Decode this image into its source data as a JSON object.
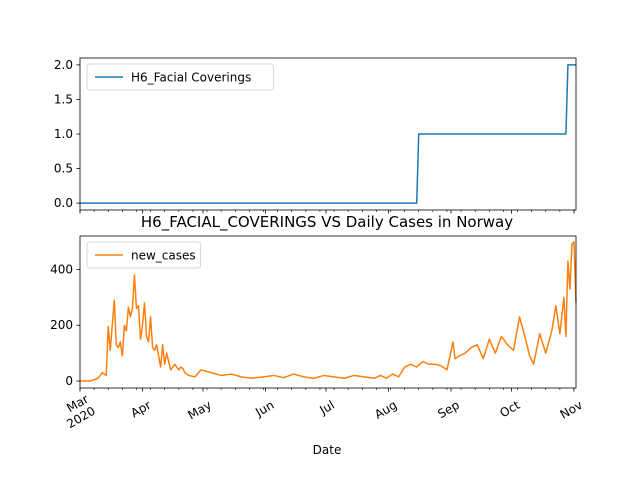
{
  "chart_data": [
    {
      "type": "line",
      "title": "",
      "xlabel": "",
      "ylabel": "",
      "ylim": [
        -0.1,
        2.1
      ],
      "yticks": [
        "0.0",
        "0.5",
        "1.0",
        "1.5",
        "2.0"
      ],
      "ytick_values": [
        0.0,
        0.5,
        1.0,
        1.5,
        2.0
      ],
      "legend": "top-left",
      "series": [
        {
          "name": "H6_Facial Coverings",
          "color": "#1f77b4",
          "x": [
            "2020-03-01",
            "2020-08-15",
            "2020-08-16",
            "2020-10-28",
            "2020-10-29",
            "2020-11-02"
          ],
          "values": [
            0,
            0,
            1,
            1,
            2,
            2
          ]
        }
      ]
    },
    {
      "type": "line",
      "title": "H6_FACIAL_COVERINGS VS Daily Cases in Norway",
      "xlabel": "Date",
      "ylabel": "",
      "ylim": [
        -25,
        520
      ],
      "yticks": [
        "0",
        "200",
        "400"
      ],
      "ytick_values": [
        0,
        200,
        400
      ],
      "xticks": [
        "Mar\n2020",
        "Apr",
        "May",
        "Jun",
        "Jul",
        "Aug",
        "Sep",
        "Oct",
        "Nov"
      ],
      "legend": "top-left",
      "series": [
        {
          "name": "new_cases",
          "color": "#ff7f0e",
          "x": [
            "2020-03-01",
            "2020-03-06",
            "2020-03-10",
            "2020-03-12",
            "2020-03-14",
            "2020-03-15",
            "2020-03-16",
            "2020-03-18",
            "2020-03-19",
            "2020-03-20",
            "2020-03-21",
            "2020-03-22",
            "2020-03-23",
            "2020-03-24",
            "2020-03-25",
            "2020-03-26",
            "2020-03-27",
            "2020-03-28",
            "2020-03-29",
            "2020-03-30",
            "2020-03-31",
            "2020-04-01",
            "2020-04-02",
            "2020-04-03",
            "2020-04-04",
            "2020-04-05",
            "2020-04-06",
            "2020-04-07",
            "2020-04-08",
            "2020-04-09",
            "2020-04-10",
            "2020-04-11",
            "2020-04-12",
            "2020-04-13",
            "2020-04-15",
            "2020-04-17",
            "2020-04-19",
            "2020-04-20",
            "2020-04-21",
            "2020-04-22",
            "2020-04-24",
            "2020-04-27",
            "2020-04-30",
            "2020-05-05",
            "2020-05-10",
            "2020-05-15",
            "2020-05-20",
            "2020-05-25",
            "2020-05-31",
            "2020-06-05",
            "2020-06-10",
            "2020-06-15",
            "2020-06-20",
            "2020-06-25",
            "2020-06-30",
            "2020-07-05",
            "2020-07-10",
            "2020-07-15",
            "2020-07-20",
            "2020-07-25",
            "2020-07-28",
            "2020-07-31",
            "2020-08-03",
            "2020-08-06",
            "2020-08-09",
            "2020-08-12",
            "2020-08-15",
            "2020-08-18",
            "2020-08-21",
            "2020-08-24",
            "2020-08-27",
            "2020-08-30",
            "2020-09-02",
            "2020-09-03",
            "2020-09-05",
            "2020-09-08",
            "2020-09-11",
            "2020-09-14",
            "2020-09-17",
            "2020-09-20",
            "2020-09-23",
            "2020-09-26",
            "2020-09-29",
            "2020-10-02",
            "2020-10-05",
            "2020-10-08",
            "2020-10-10",
            "2020-10-12",
            "2020-10-15",
            "2020-10-18",
            "2020-10-21",
            "2020-10-23",
            "2020-10-25",
            "2020-10-27",
            "2020-10-28",
            "2020-10-29",
            "2020-10-30",
            "2020-10-31",
            "2020-11-01",
            "2020-11-02"
          ],
          "values": [
            0,
            0,
            10,
            30,
            20,
            195,
            110,
            290,
            130,
            120,
            140,
            90,
            200,
            180,
            265,
            230,
            260,
            380,
            260,
            270,
            150,
            200,
            280,
            160,
            140,
            230,
            120,
            110,
            130,
            90,
            50,
            130,
            60,
            100,
            40,
            60,
            40,
            50,
            45,
            30,
            20,
            15,
            40,
            30,
            20,
            25,
            15,
            10,
            15,
            20,
            12,
            25,
            15,
            10,
            20,
            15,
            10,
            20,
            15,
            10,
            20,
            10,
            25,
            15,
            50,
            60,
            50,
            70,
            60,
            60,
            55,
            40,
            140,
            80,
            90,
            100,
            120,
            130,
            80,
            150,
            100,
            160,
            130,
            110,
            230,
            150,
            90,
            60,
            170,
            100,
            180,
            270,
            170,
            300,
            160,
            430,
            330,
            490,
            500,
            280
          ]
        }
      ]
    }
  ]
}
